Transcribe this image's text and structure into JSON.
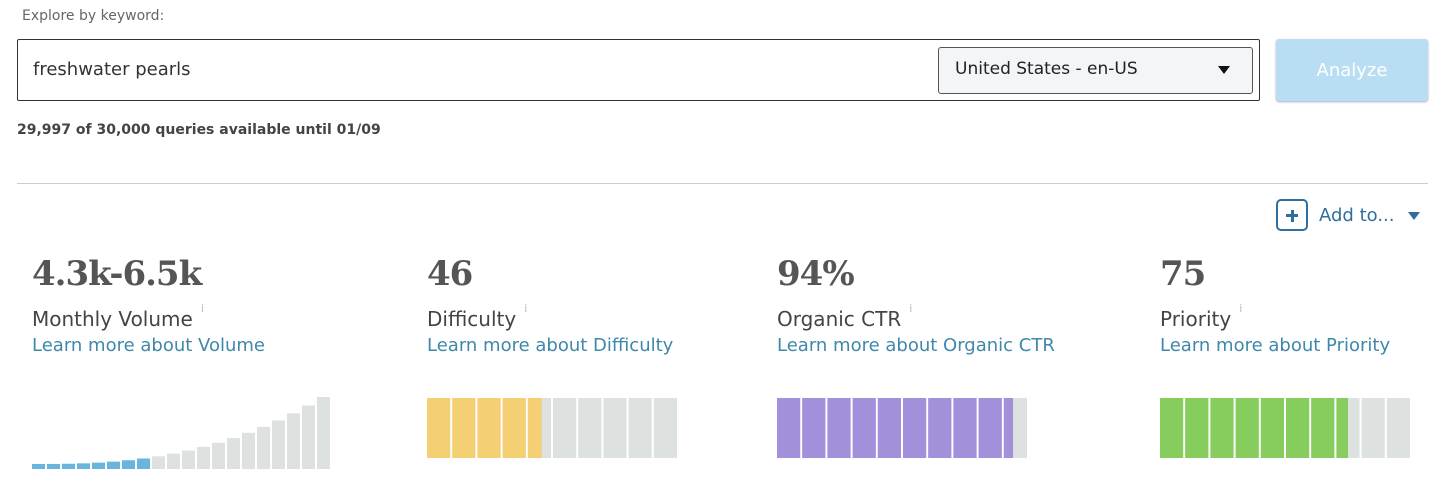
{
  "search": {
    "label": "Explore by keyword:",
    "query": "freshwater pearls",
    "locale": "United States - en-US",
    "button": "Analyze",
    "quota": "29,997 of 30,000 queries available until 01/09"
  },
  "add_to": "Add to...",
  "info_icon": "i",
  "metrics": [
    {
      "value": "4.3k-6.5k",
      "label": "Monthly Volume",
      "link": "Learn more about Volume"
    },
    {
      "value": 46,
      "label": "Difficulty",
      "link": "Learn more about Difficulty",
      "color": "#f5cf73"
    },
    {
      "value": 94,
      "value_label": "94%",
      "label": "Organic CTR",
      "link": "Learn more about Organic CTR",
      "color": "#a390da"
    },
    {
      "value": 75,
      "label": "Priority",
      "link": "Learn more about Priority",
      "color": "#86cd5e"
    }
  ]
}
